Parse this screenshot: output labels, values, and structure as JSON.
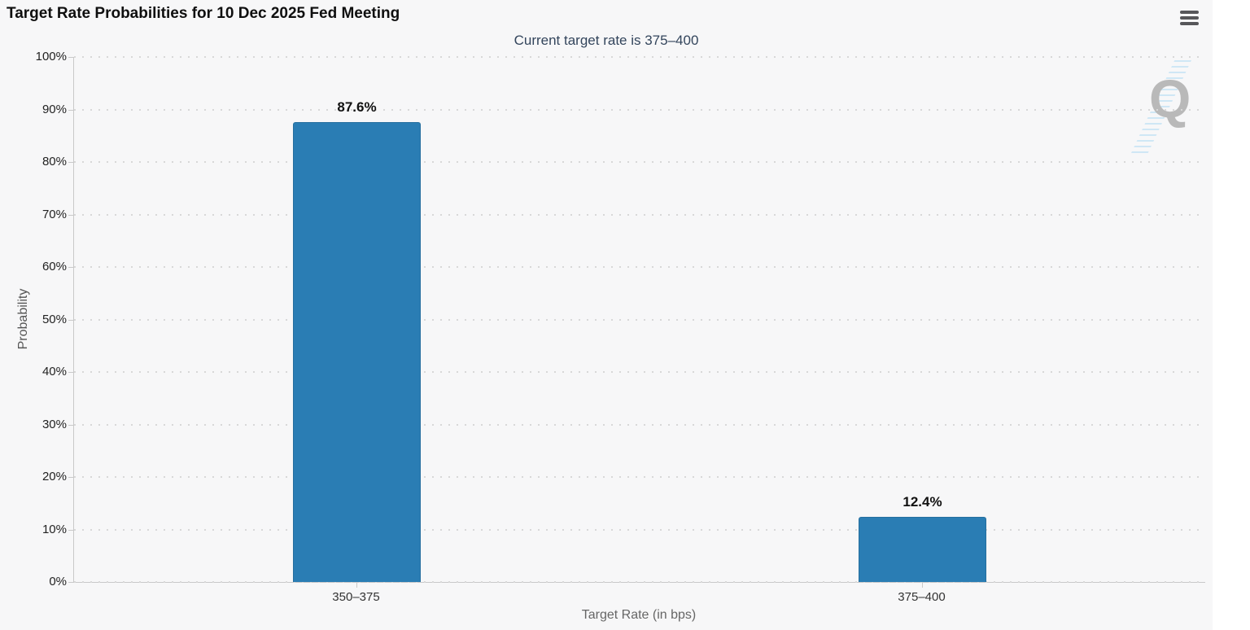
{
  "header": {
    "title": "Target Rate Probabilities for 10 Dec 2025 Fed Meeting",
    "subtitle": "Current target rate is 375–400",
    "menu_icon": "hamburger-menu-icon"
  },
  "watermark": {
    "letter": "Q"
  },
  "colors": {
    "bar": "#2a7db4",
    "bar_border": "#266f9f",
    "background": "#f7f7f8",
    "subtitle_text": "#33455c",
    "axis_line": "#c9c9c9",
    "grid_dot": "#d8d8d8",
    "watermark_letter": "#b9b9b9",
    "watermark_stripes": "#cfe7f5"
  },
  "chart_data": {
    "type": "bar",
    "title": "Target Rate Probabilities for 10 Dec 2025 Fed Meeting",
    "subtitle": "Current target rate is 375–400",
    "categories": [
      "350–375",
      "375–400"
    ],
    "values": [
      87.6,
      12.4
    ],
    "value_labels": [
      "87.6%",
      "12.4%"
    ],
    "xlabel": "Target Rate (in bps)",
    "ylabel": "Probability",
    "ylim": [
      0,
      100
    ],
    "ytick_step": 10,
    "ytick_labels": [
      "0%",
      "10%",
      "20%",
      "30%",
      "40%",
      "50%",
      "60%",
      "70%",
      "80%",
      "90%",
      "100%"
    ],
    "grid": "dotted-horizontal",
    "legend": "none"
  }
}
